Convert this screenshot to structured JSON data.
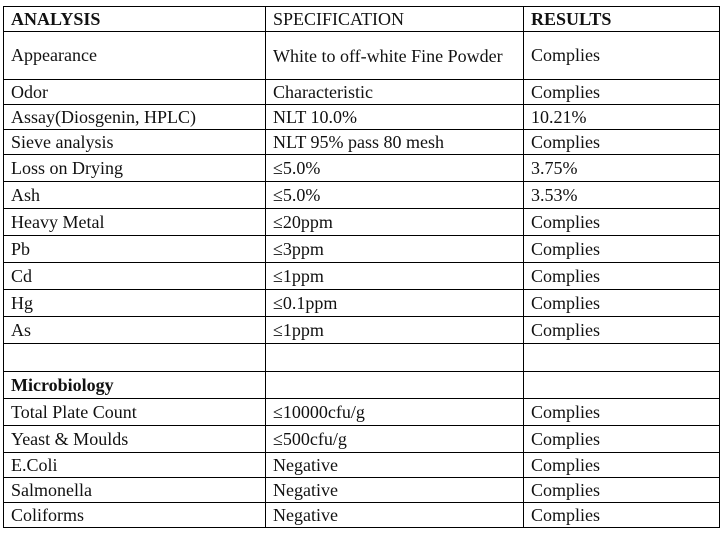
{
  "headers": {
    "analysis": "ANALYSIS",
    "specification": "SPECIFICATION",
    "results": "RESULTS"
  },
  "rows": [
    {
      "analysis": "Appearance",
      "spec": "White to off-white Fine Powder",
      "result": "Complies"
    },
    {
      "analysis": "Odor",
      "spec": "Characteristic",
      "result": "Complies"
    },
    {
      "analysis": "Assay(Diosgenin, HPLC)",
      "spec": "NLT 10.0%",
      "result": "10.21%"
    },
    {
      "analysis": "Sieve analysis",
      "spec": "NLT 95% pass 80 mesh",
      "result": "Complies"
    },
    {
      "analysis": "Loss on Drying",
      "spec": "≤5.0%",
      "result": "3.75%"
    },
    {
      "analysis": "Ash",
      "spec": "≤5.0%",
      "result": "3.53%"
    },
    {
      "analysis": "Heavy Metal",
      "spec": "≤20ppm",
      "result": "Complies"
    },
    {
      "analysis": "Pb",
      "spec": "≤3ppm",
      "result": "Complies"
    },
    {
      "analysis": "Cd",
      "spec": "≤1ppm",
      "result": "Complies"
    },
    {
      "analysis": "Hg",
      "spec": "≤0.1ppm",
      "result": "Complies"
    },
    {
      "analysis": "As",
      "spec": "≤1ppm",
      "result": "Complies"
    }
  ],
  "microbiology": {
    "title": "Microbiology",
    "rows": [
      {
        "analysis": "Total Plate Count",
        "spec": "≤10000cfu/g",
        "result": "Complies"
      },
      {
        "analysis": "Yeast & Moulds",
        "spec": "≤500cfu/g",
        "result": "Complies"
      },
      {
        "analysis": "E.Coli",
        "spec": "Negative",
        "result": "Complies"
      },
      {
        "analysis": "Salmonella",
        "spec": "Negative",
        "result": "Complies"
      },
      {
        "analysis": "Coliforms",
        "spec": "Negative",
        "result": "Complies"
      }
    ]
  }
}
